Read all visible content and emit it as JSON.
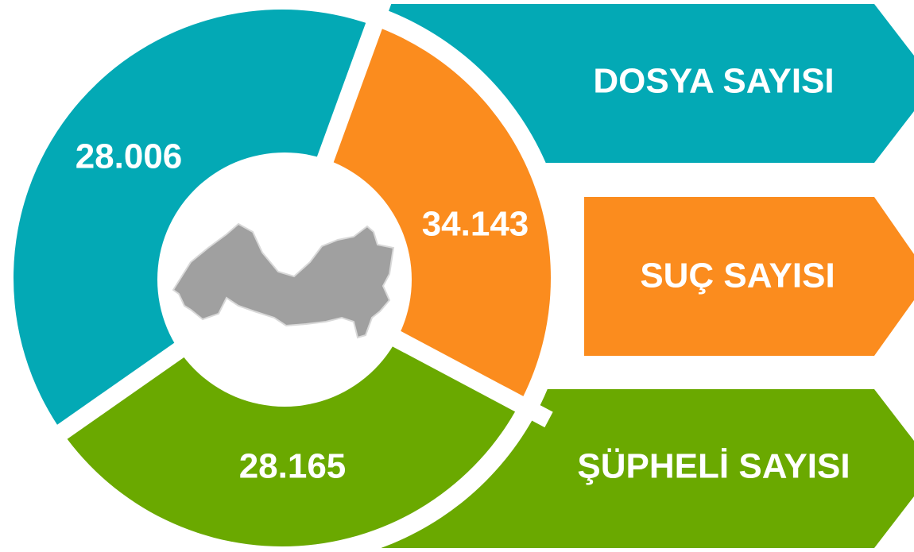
{
  "items": [
    {
      "label": "DOSYA SAYISI",
      "value": "28.006"
    },
    {
      "label": "SUÇ SAYISI",
      "value": "34.143"
    },
    {
      "label": "ŞÜPHELİ SAYISI",
      "value": "28.165"
    }
  ]
}
